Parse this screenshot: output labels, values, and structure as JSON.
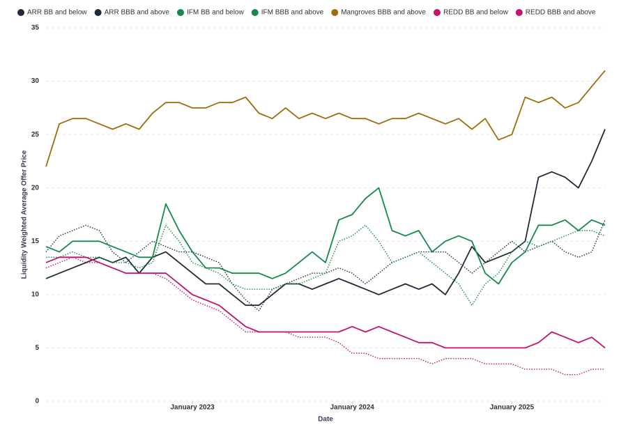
{
  "chart_data": {
    "type": "line",
    "y_label": "Liquidity Weighted Average Offer Price",
    "x_label": "Date",
    "x": [
      "2022-02",
      "2022-03",
      "2022-04",
      "2022-05",
      "2022-06",
      "2022-07",
      "2022-08",
      "2022-09",
      "2022-10",
      "2022-11",
      "2022-12",
      "2023-01",
      "2023-02",
      "2023-03",
      "2023-04",
      "2023-05",
      "2023-06",
      "2023-07",
      "2023-08",
      "2023-09",
      "2023-10",
      "2023-11",
      "2023-12",
      "2024-01",
      "2024-02",
      "2024-03",
      "2024-04",
      "2024-05",
      "2024-06",
      "2024-07",
      "2024-08",
      "2024-09",
      "2024-10",
      "2024-11",
      "2024-12",
      "2025-01",
      "2025-02",
      "2025-03",
      "2025-04",
      "2025-05",
      "2025-06",
      "2025-07",
      "2025-08"
    ],
    "xlim": [
      "2022-02",
      "2025-08"
    ],
    "xticks": [
      {
        "value": "2023-01",
        "label": "January 2023"
      },
      {
        "value": "2024-01",
        "label": "January 2024"
      },
      {
        "value": "2025-01",
        "label": "January 2025"
      }
    ],
    "ylim": [
      0,
      35
    ],
    "yticks": [
      0,
      5,
      10,
      15,
      20,
      25,
      30,
      35
    ],
    "grid": true,
    "legend": "top-left",
    "series": [
      {
        "name": "ARR BB and below",
        "color": "#1e2a38",
        "style": "solid",
        "values": [
          11.5,
          12,
          12.5,
          13,
          13.5,
          13,
          13.5,
          12,
          13.5,
          14,
          13,
          12,
          11,
          11,
          10,
          9,
          9,
          10,
          11,
          11,
          10.5,
          11,
          11.5,
          11,
          10.5,
          10,
          10.5,
          11,
          10.5,
          11,
          10,
          12,
          14.5,
          13,
          13.5,
          14,
          15,
          21,
          21.5,
          21,
          20,
          22.5,
          25.5
        ]
      },
      {
        "name": "ARR BBB and above",
        "color": "#1e2a38",
        "style": "dotted",
        "values": [
          14,
          15.5,
          16,
          16.5,
          16,
          14,
          13,
          14,
          15,
          14.5,
          14,
          14,
          13.5,
          13,
          11,
          9.5,
          8.5,
          10.5,
          11,
          11.5,
          12,
          12,
          12.5,
          12,
          11,
          12,
          13,
          13.5,
          14,
          14,
          14,
          13,
          12,
          13,
          14,
          15,
          14,
          14.5,
          15,
          14,
          13.5,
          14,
          17
        ]
      },
      {
        "name": "IFM BB and below",
        "color": "#13894a",
        "style": "solid",
        "values": [
          14.5,
          14,
          15,
          15,
          15,
          14.5,
          14,
          13.5,
          13.5,
          18.5,
          16,
          14,
          12.5,
          12.5,
          12,
          12,
          12,
          11.5,
          12,
          13,
          14,
          13,
          17,
          17.5,
          19,
          20,
          16,
          15.5,
          16,
          14,
          15,
          15.5,
          15,
          12,
          11,
          13,
          14,
          16.5,
          16.5,
          17,
          16,
          17,
          16.5
        ]
      },
      {
        "name": "IFM BBB and above",
        "color": "#13894a",
        "style": "dotted",
        "values": [
          13.5,
          13.5,
          14,
          13.5,
          13.5,
          13,
          13,
          12.5,
          13,
          16.5,
          15,
          13,
          12.5,
          12,
          11,
          10.5,
          10.5,
          10.5,
          11,
          11,
          11.5,
          12,
          15,
          15.5,
          16.5,
          15,
          13,
          13.5,
          14,
          13,
          12,
          11,
          9,
          11,
          12,
          14,
          15,
          14.5,
          15,
          15.5,
          16,
          16,
          15.5
        ]
      },
      {
        "name": "Mangroves BBB and above",
        "color": "#9c6d0b",
        "style": "solid",
        "values": [
          22,
          26,
          26.5,
          26.5,
          26,
          25.5,
          26,
          25.5,
          27,
          28,
          28,
          27.5,
          27.5,
          28,
          28,
          28.5,
          27,
          26.5,
          27.5,
          26.5,
          27,
          26.5,
          27,
          26.5,
          26.5,
          26,
          26.5,
          26.5,
          27,
          26.5,
          26,
          26.5,
          25.5,
          26.5,
          24.5,
          25,
          28.5,
          28,
          28.5,
          27.5,
          28,
          29.5,
          31
        ]
      },
      {
        "name": "REDD BB and below",
        "color": "#c4126e",
        "style": "solid",
        "values": [
          13,
          13.5,
          13.5,
          13.5,
          13,
          12.5,
          12,
          12,
          12,
          12,
          11,
          10,
          9.5,
          9,
          8,
          7,
          6.5,
          6.5,
          6.5,
          6.5,
          6.5,
          6.5,
          6.5,
          7,
          6.5,
          7,
          6.5,
          6,
          5.5,
          5.5,
          5,
          5,
          5,
          5,
          5,
          5,
          5,
          5.5,
          6.5,
          6,
          5.5,
          6,
          5
        ]
      },
      {
        "name": "REDD BBB and above",
        "color": "#c4126e",
        "style": "dotted",
        "values": [
          12.5,
          13,
          13.5,
          13,
          13,
          12.5,
          12,
          12,
          12,
          11.5,
          10.5,
          9.5,
          9,
          8.5,
          7.5,
          6.5,
          6.5,
          6.5,
          6.5,
          6,
          6,
          6,
          5.5,
          4.5,
          4.5,
          4,
          4,
          4,
          4,
          3.5,
          4,
          4,
          4,
          3.5,
          3.5,
          3.5,
          3,
          3,
          3,
          2.5,
          2.5,
          3,
          3
        ]
      }
    ]
  }
}
